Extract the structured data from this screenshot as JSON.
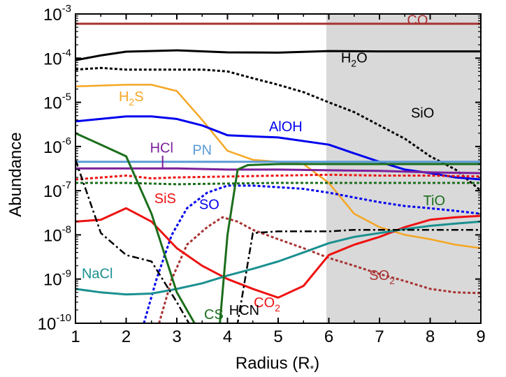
{
  "chart_data": {
    "type": "line",
    "xlabel": "Radius (R",
    "xlabel_sub": "*",
    "xlabel_close": ")",
    "ylabel": "Abundance",
    "xlim": [
      1,
      9
    ],
    "ylim": [
      1e-10,
      0.001
    ],
    "yscale": "log",
    "grid": false,
    "legend": "none",
    "shaded_region": {
      "x_from": 5.95,
      "x_to": 9,
      "color": "#d9d9d9"
    },
    "x_ticks": [
      "1",
      "2",
      "3",
      "4",
      "5",
      "6",
      "7",
      "8",
      "9"
    ],
    "y_ticks": [
      {
        "base": "10",
        "exp": "-10",
        "value": 1e-10
      },
      {
        "base": "10",
        "exp": "-9",
        "value": 1e-09
      },
      {
        "base": "10",
        "exp": "-8",
        "value": 1e-08
      },
      {
        "base": "10",
        "exp": "-7",
        "value": 1e-07
      },
      {
        "base": "10",
        "exp": "-6",
        "value": 1e-06
      },
      {
        "base": "10",
        "exp": "-5",
        "value": 1e-05
      },
      {
        "base": "10",
        "exp": "-4",
        "value": 0.0001
      },
      {
        "base": "10",
        "exp": "-3",
        "value": 0.001
      }
    ],
    "series": [
      {
        "name": "CO",
        "color": "#a83232",
        "dash": "solid",
        "width": 3,
        "x": [
          1,
          9
        ],
        "y": [
          0.0006,
          0.0006
        ]
      },
      {
        "name": "H2O",
        "color": "#000000",
        "dash": "solid",
        "width": 3,
        "x": [
          1,
          1.5,
          2,
          3,
          4,
          5,
          6,
          7,
          8,
          9
        ],
        "y": [
          9e-05,
          0.000115,
          0.00014,
          0.00015,
          0.000135,
          0.000133,
          0.000145,
          0.000142,
          0.000142,
          0.000142
        ]
      },
      {
        "name": "SiO",
        "color": "#000000",
        "dash": "dotted",
        "width": 3,
        "x": [
          1,
          1.5,
          2,
          3,
          3.5,
          4,
          4.5,
          5,
          5.5,
          6,
          6.5,
          7,
          7.5,
          8,
          8.5,
          9
        ],
        "y": [
          5.5e-05,
          6e-05,
          5.5e-05,
          5.5e-05,
          5.5e-05,
          5e-05,
          3.5e-05,
          2.5e-05,
          1.7e-05,
          1e-05,
          6e-06,
          3e-06,
          1.5e-06,
          6e-07,
          3e-07,
          1e-07
        ]
      },
      {
        "name": "H2S",
        "color": "#f5a623",
        "dash": "solid",
        "width": 2.5,
        "x": [
          1,
          2,
          2.5,
          3,
          3.5,
          4,
          4.5,
          5,
          5.5,
          6,
          6.5,
          7,
          7.5,
          8,
          8.5,
          9
        ],
        "y": [
          2.3e-05,
          2.5e-05,
          2.5e-05,
          1.8e-05,
          4e-06,
          8e-07,
          5e-07,
          4.5e-07,
          4e-07,
          1.5e-07,
          3e-08,
          1.5e-08,
          1e-08,
          8e-09,
          6e-09,
          5e-09
        ]
      },
      {
        "name": "AlOH",
        "color": "#0000ee",
        "dash": "solid",
        "width": 3,
        "x": [
          1,
          2,
          2.5,
          3,
          3.5,
          4,
          5,
          6,
          6.5,
          7,
          7.5,
          8,
          8.5,
          9
        ],
        "y": [
          3.7e-06,
          4.8e-06,
          4.8e-06,
          4.2e-06,
          3e-06,
          1.8e-06,
          1.6e-06,
          1.1e-06,
          7e-07,
          4.5e-07,
          3e-07,
          2.5e-07,
          2e-07,
          1.8e-07
        ]
      },
      {
        "name": "PN",
        "color": "#5b9bd5",
        "dash": "solid",
        "width": 3,
        "x": [
          1,
          9
        ],
        "y": [
          4.5e-07,
          4.5e-07
        ]
      },
      {
        "name": "HCl",
        "color": "#7b1f9b",
        "dash": "solid",
        "width": 3,
        "x": [
          1,
          3,
          4,
          5,
          6,
          7,
          8,
          9
        ],
        "y": [
          3.2e-07,
          3.2e-07,
          3e-07,
          3e-07,
          2.9e-07,
          2.8e-07,
          2.6e-07,
          2.5e-07
        ]
      },
      {
        "name": "SiS",
        "color": "#ee1111",
        "dash": "dotted",
        "width": 3,
        "x": [
          1,
          2,
          2.5,
          3,
          4,
          5,
          6,
          7,
          8,
          9
        ],
        "y": [
          1.8e-07,
          2.2e-07,
          1.9e-07,
          2e-07,
          2.1e-07,
          2.2e-07,
          2.3e-07,
          2.2e-07,
          2.2e-07,
          2.1e-07
        ]
      },
      {
        "name": "TiO",
        "color": "#1b6e1b",
        "dash": "dotted",
        "width": 3,
        "x": [
          1,
          2,
          3,
          4,
          5,
          6,
          7,
          8,
          9
        ],
        "y": [
          1.5e-07,
          1.5e-07,
          1.4e-07,
          1.45e-07,
          1.5e-07,
          1.5e-07,
          1.5e-07,
          1.5e-07,
          1.5e-07
        ]
      },
      {
        "name": "SO",
        "color": "#0000ee",
        "dash": "dotted",
        "width": 3,
        "x": [
          2.35,
          2.6,
          2.9,
          3.2,
          3.6,
          4,
          4.5,
          5,
          5.5,
          6,
          6.5,
          7,
          7.5,
          8,
          8.5,
          9
        ],
        "y": [
          1e-10,
          1e-09,
          1e-08,
          4e-08,
          9e-08,
          1.3e-07,
          1.3e-07,
          1.2e-07,
          1.1e-07,
          9e-08,
          7e-08,
          5.5e-08,
          4.5e-08,
          4e-08,
          3.5e-08,
          3e-08
        ]
      },
      {
        "name": "SO2",
        "color": "#a83232",
        "dash": "dotted",
        "width": 3,
        "x": [
          2.65,
          2.9,
          3.2,
          3.6,
          3.9,
          4.2,
          4.5,
          5,
          5.5,
          6,
          6.5,
          7,
          7.5,
          8,
          8.5,
          9
        ],
        "y": [
          1e-10,
          1e-09,
          6e-09,
          1.5e-08,
          2.5e-08,
          2e-08,
          1.3e-08,
          8e-09,
          5e-09,
          3e-09,
          2e-09,
          1.3e-09,
          9e-10,
          6e-10,
          5e-10,
          4.8e-10
        ]
      },
      {
        "name": "CO2",
        "color": "#ee1111",
        "dash": "solid",
        "width": 3,
        "x": [
          1,
          1.5,
          2,
          2.5,
          3,
          3.5,
          4,
          4.5,
          5,
          5.5,
          6,
          6.5,
          7,
          7.5,
          8,
          8.5,
          9
        ],
        "y": [
          2e-08,
          2.2e-08,
          4e-08,
          2e-08,
          5e-09,
          2e-09,
          1e-09,
          6e-10,
          3.8e-10,
          7e-10,
          3.5e-09,
          6e-09,
          9e-09,
          1.5e-08,
          2.2e-08,
          2.5e-08,
          2.7e-08
        ]
      },
      {
        "name": "NaCl",
        "color": "#1a9090",
        "dash": "solid",
        "width": 3,
        "x": [
          1,
          1.5,
          2,
          2.5,
          3,
          3.5,
          4,
          4.5,
          5,
          5.5,
          6,
          6.5,
          7,
          7.5,
          8,
          8.5,
          9
        ],
        "y": [
          6e-10,
          5e-10,
          4.5e-10,
          4.7e-10,
          6e-10,
          8e-10,
          1.2e-09,
          1.7e-09,
          2.5e-09,
          4e-09,
          6.5e-09,
          9e-09,
          1.1e-08,
          1.35e-08,
          1.6e-08,
          1.8e-08,
          2e-08
        ]
      },
      {
        "name": "CS",
        "color": "#1b6e1b",
        "dash": "solid",
        "width": 3,
        "x": [
          1,
          1.5,
          2,
          2.5,
          3,
          3.5,
          3.7,
          3.85,
          4,
          4.2,
          4.4,
          5,
          6,
          7,
          8,
          9
        ],
        "y": [
          2e-06,
          1.1e-06,
          6e-07,
          3e-08,
          5e-10,
          5e-11,
          5e-11,
          1e-10,
          1e-08,
          3e-07,
          3.8e-07,
          4e-07,
          4e-07,
          4e-07,
          4e-07,
          4e-07
        ]
      },
      {
        "name": "HCN",
        "color": "#000000",
        "dash": "dashdot",
        "width": 2.5,
        "x": [
          1,
          1.5,
          2,
          2.5,
          3,
          3.5,
          3.8,
          4.2,
          4.5,
          5,
          5.5,
          6,
          6.5,
          7,
          7.5,
          8,
          8.5,
          9
        ],
        "y": [
          5e-07,
          1.1e-08,
          3.5e-09,
          2.5e-09,
          3e-10,
          3e-11,
          3e-11,
          1e-10,
          1.1e-08,
          1.2e-08,
          1.2e-08,
          1.2e-08,
          1.3e-08,
          1.3e-08,
          1.3e-08,
          1.3e-08,
          1.3e-08,
          1.3e-08
        ]
      }
    ],
    "labels": [
      {
        "id": "co",
        "base": "CO",
        "sub": "",
        "color": "#a83232",
        "x": 7.75,
        "y": 0.00057
      },
      {
        "id": "h2o",
        "base": "H",
        "sub": "2",
        "after": "O",
        "color": "#000000",
        "x": 6.5,
        "y": 8e-05
      },
      {
        "id": "h2s",
        "base": "H",
        "sub": "2",
        "after": "S",
        "color": "#f5a623",
        "x": 2.1,
        "y": 1.05e-05
      },
      {
        "id": "sio",
        "base": "SiO",
        "sub": "",
        "color": "#000000",
        "x": 7.85,
        "y": 4.5e-06
      },
      {
        "id": "aloh",
        "base": "AlOH",
        "sub": "",
        "color": "#0000ee",
        "x": 5.15,
        "y": 2.2e-06
      },
      {
        "id": "hcl",
        "base": "HCl",
        "sub": "",
        "color": "#7b1f9b",
        "x": 2.7,
        "y": 7.3e-07
      },
      {
        "id": "pn",
        "base": "PN",
        "sub": "",
        "color": "#5b9bd5",
        "x": 3.5,
        "y": 6.6e-07
      },
      {
        "id": "sis",
        "base": "SiS",
        "sub": "",
        "color": "#ee1111",
        "x": 2.77,
        "y": 5.2e-08
      },
      {
        "id": "so",
        "base": "SO",
        "sub": "",
        "color": "#0000ee",
        "x": 3.64,
        "y": 3.8e-08
      },
      {
        "id": "tio",
        "base": "TiO",
        "sub": "",
        "color": "#1b6e1b",
        "x": 8.08,
        "y": 4.7e-08
      },
      {
        "id": "nacl",
        "base": "NaCl",
        "sub": "",
        "color": "#1a9090",
        "x": 1.43,
        "y": 1.05e-09
      },
      {
        "id": "so2",
        "base": "SO",
        "sub": "2",
        "color": "#a83232",
        "x": 7.05,
        "y": 9.5e-10
      },
      {
        "id": "co2",
        "base": "CO",
        "sub": "2",
        "color": "#ee1111",
        "x": 4.78,
        "y": 2.3e-10
      },
      {
        "id": "hcn",
        "base": "HCN",
        "sub": "",
        "color": "#000000",
        "x": 4.33,
        "y": 1.55e-10
      },
      {
        "id": "cs",
        "base": "CS",
        "sub": "",
        "color": "#1b6e1b",
        "x": 3.73,
        "y": 1.25e-10
      }
    ]
  }
}
